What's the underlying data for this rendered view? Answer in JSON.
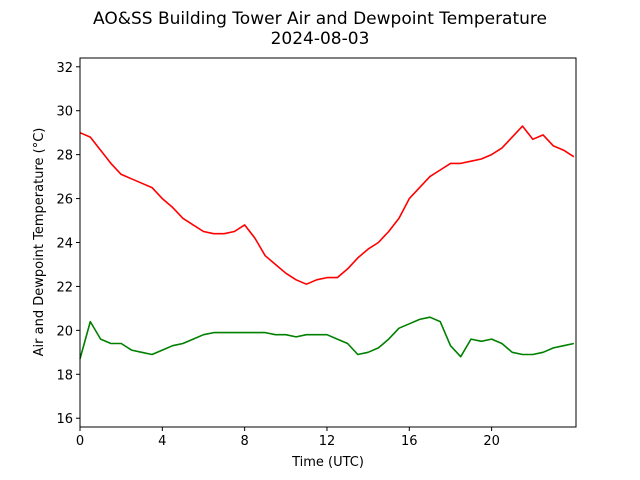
{
  "chart_data": {
    "type": "line",
    "title": "AO&SS Building Tower Air and Dewpoint Temperature",
    "subtitle": "2024-08-03",
    "xlabel": "Time (UTC)",
    "ylabel": "Air and Dewpoint Temperature (°C)",
    "xlim": [
      0,
      24.1
    ],
    "ylim": [
      15.6,
      32.4
    ],
    "xticks": [
      0,
      4,
      8,
      12,
      16,
      20
    ],
    "yticks": [
      16,
      18,
      20,
      22,
      24,
      26,
      28,
      30,
      32
    ],
    "grid": false,
    "legend": "none",
    "series": [
      {
        "color": "#ff0000",
        "x": [
          0,
          0.5,
          1,
          1.5,
          2,
          2.5,
          3,
          3.5,
          4,
          4.5,
          5,
          5.5,
          6,
          6.5,
          7,
          7.5,
          8,
          8.5,
          9,
          9.5,
          10,
          10.5,
          11,
          11.5,
          12,
          12.5,
          13,
          13.5,
          14,
          14.5,
          15,
          15.5,
          16,
          16.5,
          17,
          17.5,
          18,
          18.5,
          19,
          19.5,
          20,
          20.5,
          21,
          21.5,
          22,
          22.5,
          23,
          23.5,
          24
        ],
        "values": [
          29.0,
          28.8,
          28.2,
          27.6,
          27.1,
          26.9,
          26.7,
          26.5,
          26.0,
          25.6,
          25.1,
          24.8,
          24.5,
          24.4,
          24.4,
          24.5,
          24.8,
          24.2,
          23.4,
          23.0,
          22.6,
          22.3,
          22.1,
          22.3,
          22.4,
          22.4,
          22.8,
          23.3,
          23.7,
          24.0,
          24.5,
          25.1,
          26.0,
          26.5,
          27.0,
          27.3,
          27.6,
          27.6,
          27.7,
          27.8,
          28.0,
          28.3,
          28.8,
          29.3,
          28.7,
          28.9,
          28.4,
          28.2,
          27.9
        ]
      },
      {
        "color": "#008000",
        "x": [
          0,
          0.5,
          1,
          1.5,
          2,
          2.5,
          3,
          3.5,
          4,
          4.5,
          5,
          5.5,
          6,
          6.5,
          7,
          7.5,
          8,
          8.5,
          9,
          9.5,
          10,
          10.5,
          11,
          11.5,
          12,
          12.5,
          13,
          13.5,
          14,
          14.5,
          15,
          15.5,
          16,
          16.5,
          17,
          17.5,
          18,
          18.5,
          19,
          19.5,
          20,
          20.5,
          21,
          21.5,
          22,
          22.5,
          23,
          23.5,
          24
        ],
        "values": [
          18.7,
          20.4,
          19.6,
          19.4,
          19.4,
          19.1,
          19.0,
          18.9,
          19.1,
          19.3,
          19.4,
          19.6,
          19.8,
          19.9,
          19.9,
          19.9,
          19.9,
          19.9,
          19.9,
          19.8,
          19.8,
          19.7,
          19.8,
          19.8,
          19.8,
          19.6,
          19.4,
          18.9,
          19.0,
          19.2,
          19.6,
          20.1,
          20.3,
          20.5,
          20.6,
          20.4,
          19.3,
          18.8,
          19.6,
          19.5,
          19.6,
          19.4,
          19.0,
          18.9,
          18.9,
          19.0,
          19.2,
          19.3,
          19.4
        ]
      }
    ]
  }
}
